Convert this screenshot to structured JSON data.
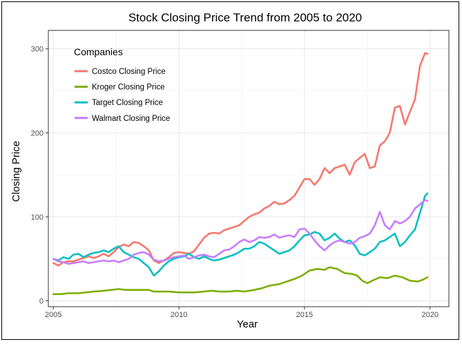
{
  "chart_data": {
    "type": "line",
    "title": "Stock Closing Price Trend from 2005 to 2020",
    "xlabel": "Year",
    "ylabel": "Closing Price",
    "xlim": [
      2004.8,
      2020.75
    ],
    "ylim": [
      -7,
      322
    ],
    "x_ticks": [
      2005,
      2010,
      2015,
      2020
    ],
    "y_ticks": [
      0,
      100,
      200,
      300
    ],
    "grid": true,
    "legend": {
      "title": "Companies",
      "position": "top-left"
    },
    "series": [
      {
        "name": "Costco Closing Price",
        "color": "#F8766D",
        "points": [
          [
            2005.0,
            45
          ],
          [
            2005.2,
            42
          ],
          [
            2005.4,
            46
          ],
          [
            2005.6,
            47
          ],
          [
            2005.8,
            47
          ],
          [
            2006.0,
            49
          ],
          [
            2006.2,
            51
          ],
          [
            2006.4,
            53
          ],
          [
            2006.6,
            51
          ],
          [
            2006.8,
            53
          ],
          [
            2007.0,
            56
          ],
          [
            2007.2,
            53
          ],
          [
            2007.4,
            58
          ],
          [
            2007.6,
            64
          ],
          [
            2007.8,
            67
          ],
          [
            2008.0,
            65
          ],
          [
            2008.2,
            70
          ],
          [
            2008.4,
            69
          ],
          [
            2008.6,
            65
          ],
          [
            2008.8,
            60
          ],
          [
            2009.0,
            48
          ],
          [
            2009.2,
            45
          ],
          [
            2009.4,
            48
          ],
          [
            2009.6,
            52
          ],
          [
            2009.8,
            57
          ],
          [
            2010.0,
            58
          ],
          [
            2010.2,
            57
          ],
          [
            2010.4,
            56
          ],
          [
            2010.6,
            59
          ],
          [
            2010.8,
            67
          ],
          [
            2011.0,
            75
          ],
          [
            2011.2,
            80
          ],
          [
            2011.4,
            81
          ],
          [
            2011.6,
            80
          ],
          [
            2011.8,
            84
          ],
          [
            2012.0,
            86
          ],
          [
            2012.2,
            88
          ],
          [
            2012.4,
            90
          ],
          [
            2012.6,
            95
          ],
          [
            2012.8,
            100
          ],
          [
            2013.0,
            103
          ],
          [
            2013.2,
            105
          ],
          [
            2013.4,
            110
          ],
          [
            2013.6,
            113
          ],
          [
            2013.8,
            118
          ],
          [
            2014.0,
            115
          ],
          [
            2014.2,
            116
          ],
          [
            2014.4,
            120
          ],
          [
            2014.6,
            125
          ],
          [
            2014.8,
            135
          ],
          [
            2015.0,
            145
          ],
          [
            2015.2,
            145
          ],
          [
            2015.4,
            138
          ],
          [
            2015.6,
            145
          ],
          [
            2015.8,
            158
          ],
          [
            2016.0,
            152
          ],
          [
            2016.2,
            158
          ],
          [
            2016.4,
            160
          ],
          [
            2016.6,
            162
          ],
          [
            2016.8,
            150
          ],
          [
            2017.0,
            165
          ],
          [
            2017.2,
            170
          ],
          [
            2017.4,
            175
          ],
          [
            2017.6,
            158
          ],
          [
            2017.8,
            160
          ],
          [
            2018.0,
            185
          ],
          [
            2018.2,
            190
          ],
          [
            2018.4,
            200
          ],
          [
            2018.6,
            230
          ],
          [
            2018.8,
            232
          ],
          [
            2019.0,
            210
          ],
          [
            2019.2,
            225
          ],
          [
            2019.4,
            240
          ],
          [
            2019.6,
            280
          ],
          [
            2019.8,
            295
          ],
          [
            2019.9,
            294
          ]
        ]
      },
      {
        "name": "Kroger Closing Price",
        "color": "#7CAE00",
        "points": [
          [
            2005.0,
            8
          ],
          [
            2005.3,
            8
          ],
          [
            2005.6,
            9
          ],
          [
            2006.0,
            9
          ],
          [
            2006.3,
            10
          ],
          [
            2006.6,
            11
          ],
          [
            2007.0,
            12
          ],
          [
            2007.3,
            13
          ],
          [
            2007.6,
            14
          ],
          [
            2007.9,
            13
          ],
          [
            2008.2,
            13
          ],
          [
            2008.5,
            13
          ],
          [
            2008.8,
            13
          ],
          [
            2009.0,
            11
          ],
          [
            2009.3,
            11
          ],
          [
            2009.6,
            11
          ],
          [
            2010.0,
            10
          ],
          [
            2010.3,
            10
          ],
          [
            2010.6,
            10
          ],
          [
            2011.0,
            11
          ],
          [
            2011.3,
            12
          ],
          [
            2011.6,
            11
          ],
          [
            2012.0,
            11
          ],
          [
            2012.3,
            12
          ],
          [
            2012.6,
            11
          ],
          [
            2013.0,
            13
          ],
          [
            2013.3,
            15
          ],
          [
            2013.6,
            18
          ],
          [
            2014.0,
            20
          ],
          [
            2014.3,
            23
          ],
          [
            2014.6,
            26
          ],
          [
            2014.9,
            30
          ],
          [
            2015.2,
            36
          ],
          [
            2015.5,
            38
          ],
          [
            2015.8,
            37
          ],
          [
            2016.0,
            40
          ],
          [
            2016.3,
            38
          ],
          [
            2016.6,
            33
          ],
          [
            2016.9,
            32
          ],
          [
            2017.1,
            30
          ],
          [
            2017.3,
            24
          ],
          [
            2017.5,
            21
          ],
          [
            2017.7,
            24
          ],
          [
            2018.0,
            28
          ],
          [
            2018.3,
            27
          ],
          [
            2018.6,
            30
          ],
          [
            2018.9,
            28
          ],
          [
            2019.2,
            24
          ],
          [
            2019.5,
            23
          ],
          [
            2019.7,
            25
          ],
          [
            2019.9,
            28
          ]
        ]
      },
      {
        "name": "Target Closing Price",
        "color": "#00BFC4",
        "points": [
          [
            2005.0,
            50
          ],
          [
            2005.2,
            48
          ],
          [
            2005.4,
            52
          ],
          [
            2005.6,
            50
          ],
          [
            2005.8,
            55
          ],
          [
            2006.0,
            56
          ],
          [
            2006.2,
            52
          ],
          [
            2006.4,
            55
          ],
          [
            2006.6,
            57
          ],
          [
            2006.8,
            58
          ],
          [
            2007.0,
            60
          ],
          [
            2007.2,
            58
          ],
          [
            2007.4,
            62
          ],
          [
            2007.6,
            65
          ],
          [
            2007.8,
            58
          ],
          [
            2008.0,
            55
          ],
          [
            2008.2,
            52
          ],
          [
            2008.4,
            50
          ],
          [
            2008.6,
            45
          ],
          [
            2008.8,
            40
          ],
          [
            2009.0,
            30
          ],
          [
            2009.2,
            35
          ],
          [
            2009.4,
            42
          ],
          [
            2009.6,
            47
          ],
          [
            2009.8,
            50
          ],
          [
            2010.0,
            52
          ],
          [
            2010.2,
            53
          ],
          [
            2010.4,
            56
          ],
          [
            2010.6,
            52
          ],
          [
            2010.8,
            50
          ],
          [
            2011.0,
            53
          ],
          [
            2011.2,
            50
          ],
          [
            2011.4,
            48
          ],
          [
            2011.6,
            49
          ],
          [
            2011.8,
            51
          ],
          [
            2012.0,
            53
          ],
          [
            2012.2,
            55
          ],
          [
            2012.4,
            58
          ],
          [
            2012.6,
            62
          ],
          [
            2012.8,
            62
          ],
          [
            2013.0,
            65
          ],
          [
            2013.2,
            70
          ],
          [
            2013.4,
            68
          ],
          [
            2013.6,
            64
          ],
          [
            2013.8,
            60
          ],
          [
            2014.0,
            56
          ],
          [
            2014.2,
            58
          ],
          [
            2014.4,
            60
          ],
          [
            2014.6,
            65
          ],
          [
            2014.8,
            72
          ],
          [
            2015.0,
            78
          ],
          [
            2015.2,
            79
          ],
          [
            2015.4,
            82
          ],
          [
            2015.6,
            80
          ],
          [
            2015.8,
            72
          ],
          [
            2016.0,
            75
          ],
          [
            2016.2,
            80
          ],
          [
            2016.4,
            74
          ],
          [
            2016.6,
            70
          ],
          [
            2016.8,
            72
          ],
          [
            2017.0,
            66
          ],
          [
            2017.2,
            56
          ],
          [
            2017.4,
            54
          ],
          [
            2017.6,
            58
          ],
          [
            2017.8,
            62
          ],
          [
            2018.0,
            70
          ],
          [
            2018.2,
            72
          ],
          [
            2018.4,
            76
          ],
          [
            2018.6,
            80
          ],
          [
            2018.8,
            65
          ],
          [
            2019.0,
            70
          ],
          [
            2019.2,
            78
          ],
          [
            2019.4,
            85
          ],
          [
            2019.6,
            105
          ],
          [
            2019.8,
            125
          ],
          [
            2019.9,
            128
          ]
        ]
      },
      {
        "name": "Walmart Closing Price",
        "color": "#C77CFF",
        "points": [
          [
            2005.0,
            50
          ],
          [
            2005.2,
            47
          ],
          [
            2005.4,
            46
          ],
          [
            2005.6,
            44
          ],
          [
            2005.8,
            45
          ],
          [
            2006.0,
            46
          ],
          [
            2006.2,
            47
          ],
          [
            2006.4,
            45
          ],
          [
            2006.6,
            46
          ],
          [
            2006.8,
            47
          ],
          [
            2007.0,
            48
          ],
          [
            2007.2,
            47
          ],
          [
            2007.4,
            48
          ],
          [
            2007.6,
            46
          ],
          [
            2007.8,
            48
          ],
          [
            2008.0,
            50
          ],
          [
            2008.2,
            55
          ],
          [
            2008.4,
            57
          ],
          [
            2008.6,
            58
          ],
          [
            2008.8,
            55
          ],
          [
            2009.0,
            49
          ],
          [
            2009.2,
            47
          ],
          [
            2009.4,
            48
          ],
          [
            2009.6,
            50
          ],
          [
            2009.8,
            52
          ],
          [
            2010.0,
            53
          ],
          [
            2010.2,
            54
          ],
          [
            2010.4,
            50
          ],
          [
            2010.6,
            52
          ],
          [
            2010.8,
            54
          ],
          [
            2011.0,
            55
          ],
          [
            2011.2,
            53
          ],
          [
            2011.4,
            52
          ],
          [
            2011.6,
            56
          ],
          [
            2011.8,
            60
          ],
          [
            2012.0,
            61
          ],
          [
            2012.2,
            65
          ],
          [
            2012.4,
            70
          ],
          [
            2012.6,
            73
          ],
          [
            2012.8,
            70
          ],
          [
            2013.0,
            72
          ],
          [
            2013.2,
            76
          ],
          [
            2013.4,
            75
          ],
          [
            2013.6,
            76
          ],
          [
            2013.8,
            79
          ],
          [
            2014.0,
            75
          ],
          [
            2014.2,
            77
          ],
          [
            2014.4,
            78
          ],
          [
            2014.6,
            76
          ],
          [
            2014.8,
            85
          ],
          [
            2015.0,
            86
          ],
          [
            2015.2,
            80
          ],
          [
            2015.4,
            72
          ],
          [
            2015.6,
            65
          ],
          [
            2015.8,
            60
          ],
          [
            2016.0,
            66
          ],
          [
            2016.2,
            70
          ],
          [
            2016.4,
            72
          ],
          [
            2016.6,
            70
          ],
          [
            2016.8,
            68
          ],
          [
            2017.0,
            70
          ],
          [
            2017.2,
            75
          ],
          [
            2017.4,
            77
          ],
          [
            2017.6,
            80
          ],
          [
            2017.8,
            90
          ],
          [
            2018.0,
            106
          ],
          [
            2018.2,
            90
          ],
          [
            2018.4,
            85
          ],
          [
            2018.6,
            95
          ],
          [
            2018.8,
            92
          ],
          [
            2019.0,
            95
          ],
          [
            2019.2,
            100
          ],
          [
            2019.4,
            110
          ],
          [
            2019.6,
            115
          ],
          [
            2019.8,
            120
          ],
          [
            2019.9,
            119
          ]
        ]
      }
    ]
  }
}
